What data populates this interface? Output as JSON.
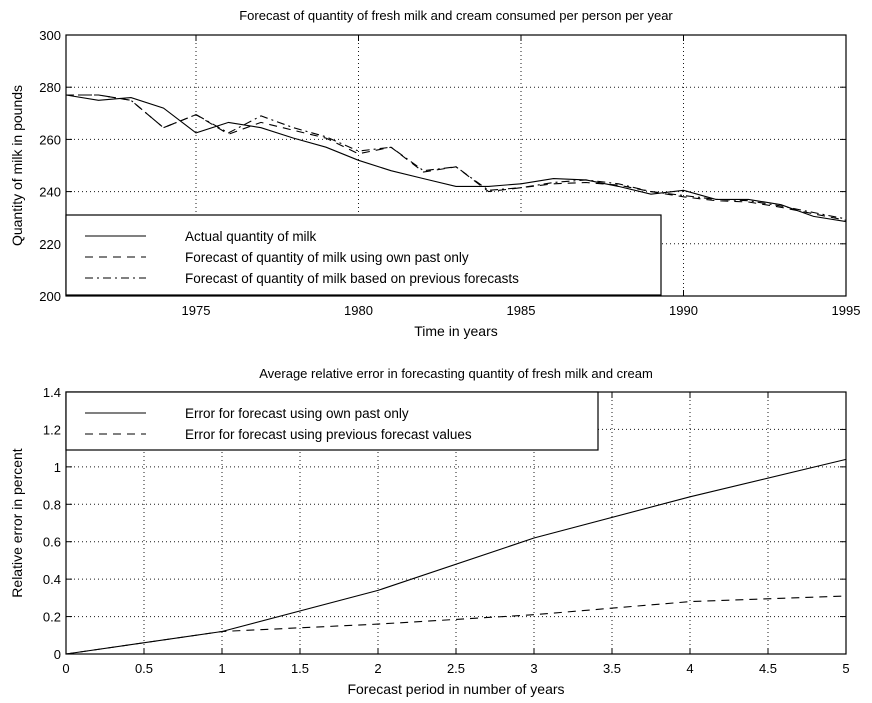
{
  "chart_data": [
    {
      "type": "line",
      "title": "Forecast of quantity of fresh milk and cream consumed per person per year",
      "xlabel": "Time in years",
      "ylabel": "Quantity of milk in pounds",
      "xlim": [
        1971,
        1995
      ],
      "ylim": [
        200,
        300
      ],
      "xticks": [
        1975,
        1980,
        1985,
        1990,
        1995
      ],
      "yticks": [
        200,
        220,
        240,
        260,
        280,
        300
      ],
      "grid": true,
      "legend_position": "lower-left",
      "x": [
        1971,
        1972,
        1973,
        1974,
        1975,
        1976,
        1977,
        1978,
        1979,
        1980,
        1981,
        1982,
        1983,
        1984,
        1985,
        1986,
        1987,
        1988,
        1989,
        1990,
        1991,
        1992,
        1993,
        1994,
        1995
      ],
      "series": [
        {
          "name": "Actual quantity of milk",
          "style": "solid",
          "values": [
            277,
            275,
            276,
            272,
            262.5,
            266.5,
            264.5,
            260.5,
            257,
            252,
            248,
            245,
            242,
            242,
            243,
            245,
            244.5,
            242,
            239,
            240.5,
            237,
            237,
            235,
            230.5,
            228.5
          ]
        },
        {
          "name": "Forecast of quantity of milk using own past only",
          "style": "dashed",
          "values": [
            277,
            277,
            275,
            264.5,
            269.5,
            262,
            266.5,
            263.5,
            260.5,
            254.5,
            257,
            247.5,
            249.5,
            240,
            241.5,
            243,
            243.5,
            242.5,
            240,
            238,
            236.5,
            236,
            234,
            231.5,
            229
          ]
        },
        {
          "name": "Forecast of quantity of milk based on previous forecasts",
          "style": "dashdot",
          "values": [
            277,
            277,
            275,
            264.5,
            269.5,
            262.5,
            269,
            264.5,
            261,
            255.5,
            257,
            248,
            249.5,
            240.5,
            241.5,
            243.5,
            244.5,
            243,
            240,
            238.5,
            237,
            236.5,
            234.5,
            232,
            229.5
          ]
        }
      ]
    },
    {
      "type": "line",
      "title": "Average relative error in forecasting quantity of fresh milk and cream",
      "xlabel": "Forecast period in number of years",
      "ylabel": "Relative error in percent",
      "xlim": [
        0,
        5
      ],
      "ylim": [
        0,
        1.4
      ],
      "xticks": [
        0,
        0.5,
        1,
        1.5,
        2,
        2.5,
        3,
        3.5,
        4,
        4.5,
        5
      ],
      "yticks": [
        0,
        0.2,
        0.4,
        0.6,
        0.8,
        1,
        1.2,
        1.4
      ],
      "grid": true,
      "legend_position": "top-left",
      "x": [
        0,
        1,
        2,
        3,
        4,
        5
      ],
      "series": [
        {
          "name": "Error for forecast using own past only",
          "style": "solid",
          "values": [
            0,
            0.12,
            0.34,
            0.62,
            0.84,
            1.04
          ]
        },
        {
          "name": "Error for forecast using previous forecast values",
          "style": "dashed",
          "values": [
            0,
            0.12,
            0.16,
            0.21,
            0.28,
            0.31
          ]
        }
      ]
    }
  ]
}
